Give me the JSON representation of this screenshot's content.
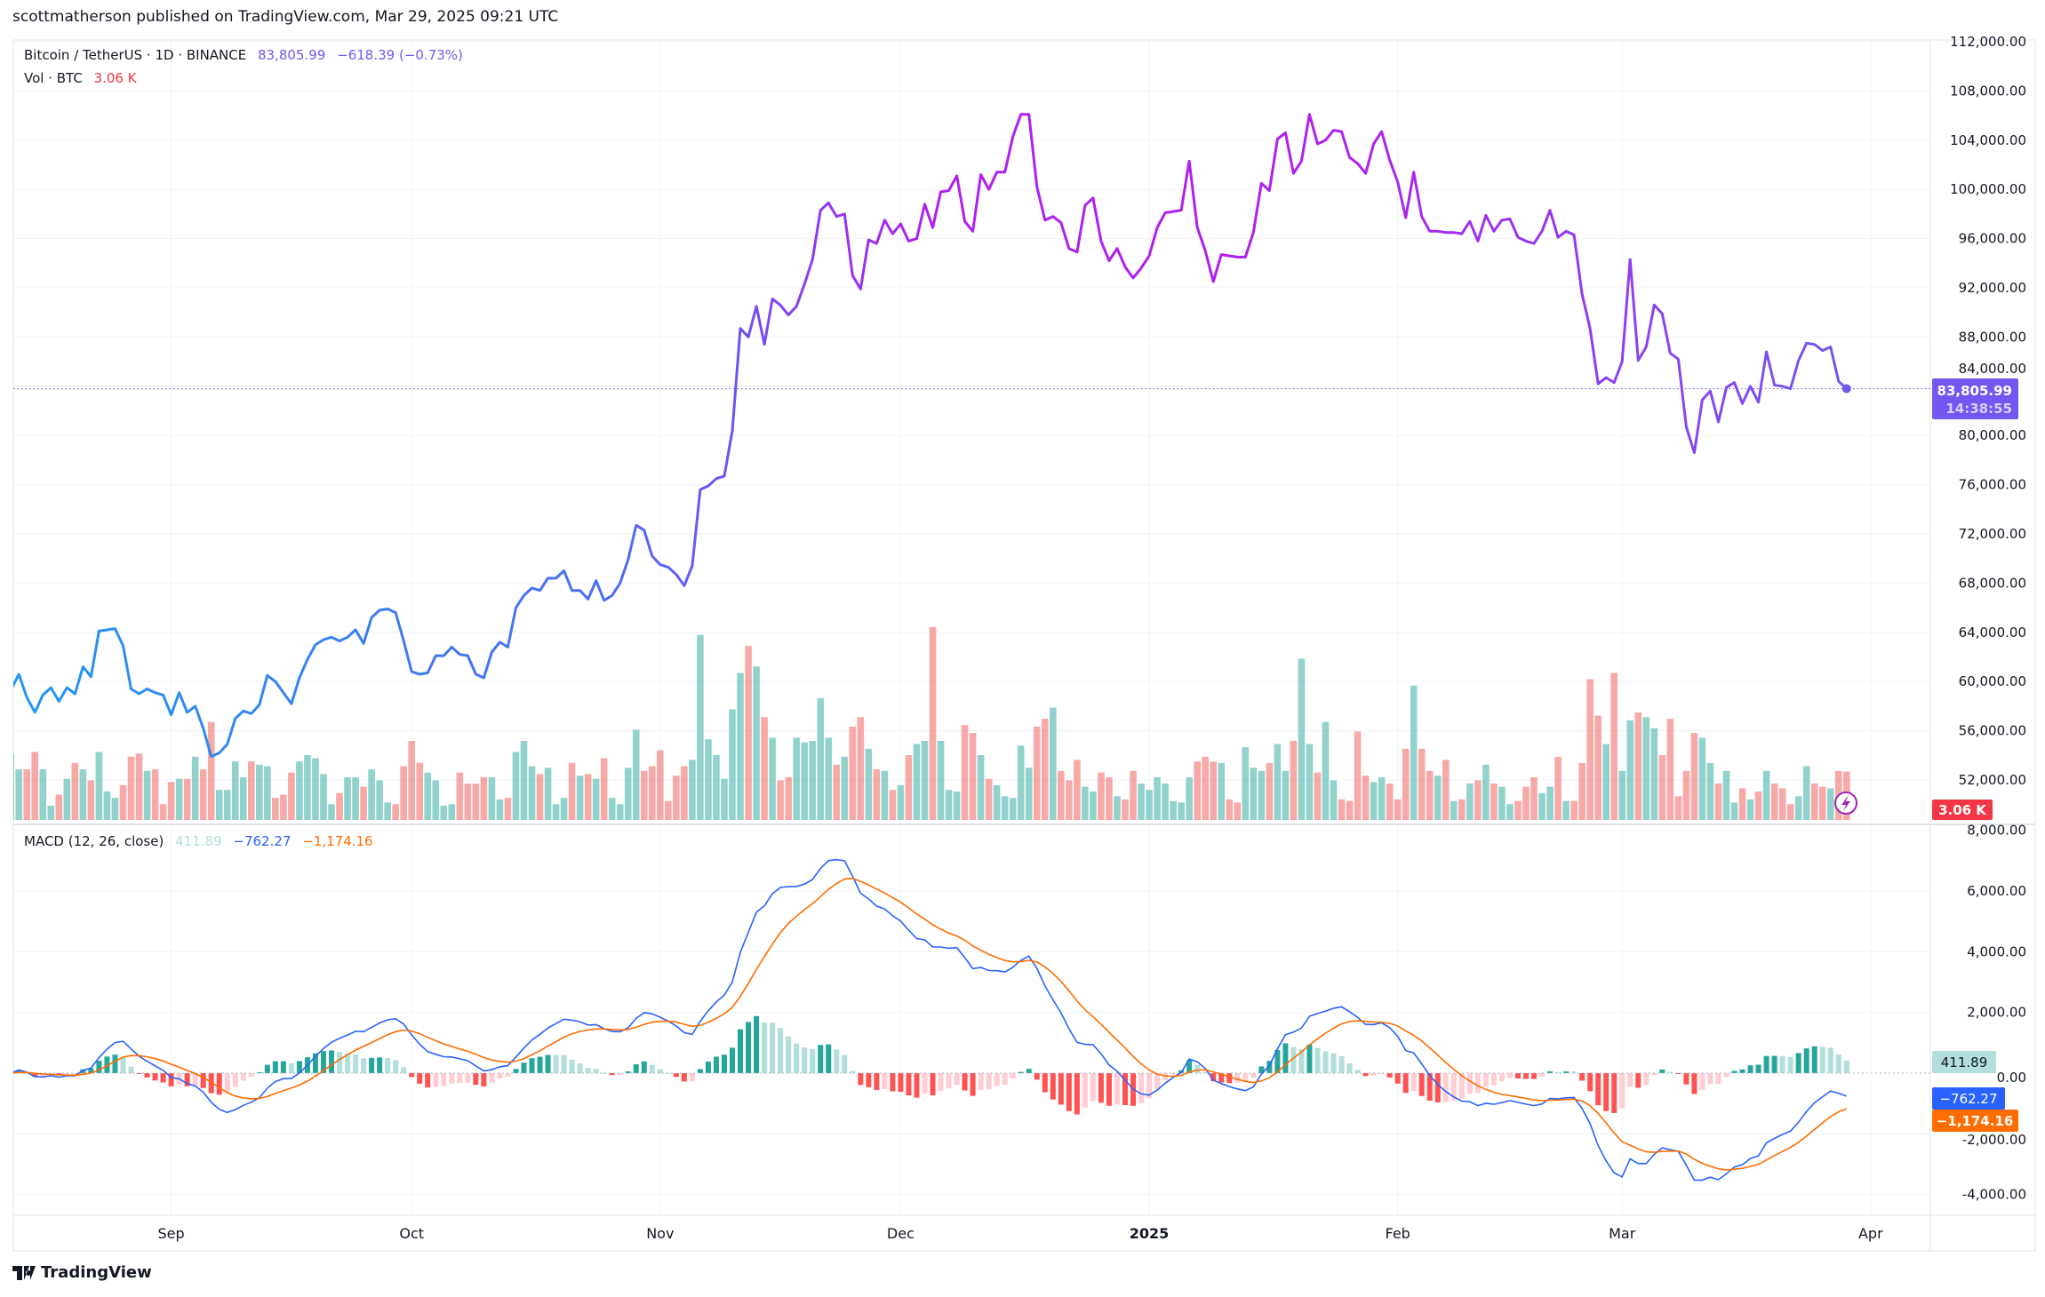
{
  "header": {
    "published": "scottmatherson published on TradingView.com, Mar 29, 2025 09:21 UTC"
  },
  "legend": {
    "symbol": "Bitcoin / TetherUS · 1D · BINANCE",
    "price": "83,805.99",
    "change": "−618.39 (−0.73%)",
    "vol_label": "Vol · BTC",
    "vol_value": "3.06 K",
    "macd_label": "MACD (12, 26, close)",
    "macd_hist": "411.89",
    "macd_line": "−762.27",
    "macd_signal": "−1,174.16"
  },
  "price_badge": {
    "price": "83,805.99",
    "countdown": "14:38:55"
  },
  "volume_badge": "3.06 K",
  "macd_badges": {
    "hist": "411.89",
    "macd": "−762.27",
    "signal": "−1,174.16"
  },
  "brand": "TradingView",
  "colors": {
    "line_start": "#2196f3",
    "line_mid": "#b01ff0",
    "line_end": "#7357f0",
    "vol_up": "#26a69a",
    "vol_down": "#ef5350",
    "macd": "#2962ff",
    "signal": "#ff6d00",
    "hist_up_strong": "#26a69a",
    "hist_up_weak": "#b2dfdb",
    "hist_down_strong": "#ff5252",
    "hist_down_weak": "#ffcdd2",
    "price_badge": "#7357f0",
    "volume_badge": "#f23645"
  },
  "chart_data": {
    "type": "line",
    "interval": "1D",
    "price_axis": {
      "range": [
        50000,
        112000
      ],
      "ticks": [
        "112,000.00",
        "108,000.00",
        "104,000.00",
        "100,000.00",
        "96,000.00",
        "92,000.00",
        "88,000.00",
        "84,000.00",
        "80,000.00",
        "76,000.00",
        "72,000.00",
        "68,000.00",
        "64,000.00",
        "60,000.00",
        "56,000.00",
        "52,000.00"
      ]
    },
    "macd_axis": {
      "range": [
        -5000,
        8500
      ],
      "ticks": [
        "8,000.00",
        "6,000.00",
        "4,000.00",
        "2,000.00",
        "0.00",
        "-2,000.00",
        "-4,000.00"
      ]
    },
    "x_ticks": [
      {
        "label": "Sep",
        "date": "2024-09-01"
      },
      {
        "label": "Oct",
        "date": "2024-10-01"
      },
      {
        "label": "Nov",
        "date": "2024-11-01"
      },
      {
        "label": "Dec",
        "date": "2024-12-01"
      },
      {
        "label": "2025",
        "date": "2025-01-01",
        "bold": true
      },
      {
        "label": "Feb",
        "date": "2025-02-01"
      },
      {
        "label": "Mar",
        "date": "2025-03-01"
      },
      {
        "label": "Apr",
        "date": "2025-04-01"
      }
    ],
    "grid": true,
    "macd_params": {
      "fast": 12,
      "slow": 26,
      "signal": 9,
      "source": "close"
    },
    "daily_close": {
      "2024-08": [
        59300,
        60600,
        58700,
        57500,
        58900,
        59500,
        58400,
        59500,
        59000,
        61200,
        60400,
        64100,
        64200,
        64300,
        62900,
        59400,
        59000,
        59400,
        59100,
        58900
      ],
      "2024-09": [
        57300,
        59100,
        57500,
        58000,
        56200,
        53900,
        54200,
        54900,
        57000,
        57600,
        57400,
        58100,
        60500,
        60000,
        59100,
        58200,
        60300,
        61800,
        63000,
        63400,
        63600,
        63300,
        63600,
        64200,
        63100,
        65200,
        65800,
        65900,
        65600,
        63300
      ],
      "2024-10": [
        60800,
        60600,
        60700,
        62100,
        62100,
        62800,
        62200,
        62100,
        60600,
        60300,
        62400,
        63200,
        62800,
        66000,
        67000,
        67600,
        67400,
        68400,
        68400,
        69000,
        67400,
        67400,
        66700,
        68200,
        66600,
        67000,
        68000,
        69900,
        72700,
        72300,
        70200
      ],
      "2024-11": [
        69500,
        69300,
        68700,
        67800,
        69400,
        75600,
        75900,
        76500,
        76700,
        80400,
        88700,
        88000,
        90500,
        87400,
        91100,
        90600,
        89800,
        90500,
        92300,
        94300,
        98300,
        98900,
        97800,
        98000,
        93000,
        91900,
        95900,
        95600,
        97500,
        96400
      ],
      "2024-12": [
        97200,
        95800,
        96000,
        98800,
        96900,
        99800,
        99900,
        101100,
        97400,
        96600,
        101200,
        100000,
        101400,
        101400,
        104300,
        106100,
        106100,
        100200,
        97500,
        97800,
        97300,
        95200,
        94900,
        98700,
        99300,
        95800,
        94200,
        95200,
        93700,
        92800,
        93600
      ],
      "2025-01": [
        94600,
        96900,
        98100,
        98200,
        98300,
        102300,
        96900,
        95000,
        92500,
        94700,
        94600,
        94500,
        94500,
        96500,
        100500,
        99900,
        104100,
        104600,
        101300,
        102300,
        106100,
        103700,
        104000,
        104800,
        104700,
        102600,
        102100,
        101300,
        103700,
        104700,
        102400
      ],
      "2025-02": [
        100600,
        97700,
        101400,
        97800,
        96600,
        96600,
        96500,
        96500,
        96400,
        97400,
        95800,
        97900,
        96600,
        97500,
        97600,
        96100,
        95800,
        95600,
        96600,
        98300,
        96100,
        96600,
        96300,
        91500,
        88700,
        84200,
        84700,
        84300
      ],
      "2025-03": [
        86000,
        94300,
        86100,
        87200,
        90600,
        89900,
        86700,
        86200,
        80700,
        78600,
        82900,
        83600,
        81100,
        83900,
        84300,
        82600,
        84000,
        82700,
        86800,
        84100,
        84000,
        83800,
        86100,
        87500,
        87400,
        86900,
        87200,
        84400,
        83805.99
      ]
    },
    "daily_volume_k_btc": {
      "2024-08": [
        4.2,
        3.2,
        3.2,
        4.3,
        3.2,
        0.9,
        1.6,
        2.6,
        3.6,
        3.2,
        2.5,
        4.3,
        1.8,
        1.4,
        2.2,
        4.0,
        4.2,
        3.1,
        3.2,
        1.0
      ],
      "2024-09": [
        2.4,
        2.6,
        2.6,
        4.0,
        3.2,
        6.2,
        1.9,
        1.9,
        3.7,
        2.7,
        3.7,
        3.5,
        3.4,
        1.4,
        1.6,
        3.0,
        3.7,
        4.1,
        3.9,
        2.9,
        1.0,
        1.7,
        2.7,
        2.7,
        2.1,
        3.2,
        2.5,
        1.1,
        1.0,
        3.4
      ],
      "2024-10": [
        5.0,
        3.6,
        3.0,
        2.5,
        0.9,
        1.0,
        3.0,
        2.3,
        2.3,
        2.7,
        2.7,
        1.3,
        1.4,
        4.3,
        5.0,
        3.4,
        2.9,
        3.3,
        1.0,
        1.4,
        3.6,
        2.8,
        2.9,
        2.6,
        3.9,
        1.4,
        1.0,
        3.3,
        5.7,
        3.1,
        3.4
      ],
      "2024-11": [
        4.4,
        1.2,
        2.8,
        3.4,
        3.8,
        11.7,
        5.1,
        4.1,
        2.6,
        7.0,
        9.3,
        11.0,
        9.7,
        6.5,
        5.2,
        2.5,
        2.7,
        5.2,
        4.9,
        5.0,
        7.7,
        5.2,
        3.5,
        4.0,
        5.9,
        6.5,
        4.5,
        3.2,
        3.1,
        1.9
      ],
      "2024-12": [
        2.2,
        4.1,
        4.8,
        5.0,
        12.2,
        5.0,
        1.9,
        1.8,
        6.0,
        5.5,
        4.1,
        2.6,
        2.2,
        1.5,
        1.4,
        4.7,
        3.3,
        5.9,
        6.4,
        7.1,
        3.1,
        2.5,
        3.8,
        2.1,
        1.8,
        3.0,
        2.7,
        1.5,
        1.3,
        3.1,
        2.3
      ],
      "2025-01": [
        1.9,
        2.7,
        2.3,
        1.2,
        1.1,
        2.7,
        3.7,
        4.0,
        3.7,
        3.6,
        1.3,
        1.1,
        4.6,
        3.3,
        3.1,
        3.6,
        4.8,
        3.1,
        5.0,
        10.2,
        4.8,
        3.0,
        6.2,
        2.5,
        1.3,
        1.2,
        5.6,
        2.8,
        2.4,
        2.7,
        2.3
      ],
      "2025-02": [
        1.3,
        4.5,
        8.5,
        4.5,
        3.1,
        2.8,
        3.8,
        1.2,
        1.3,
        2.3,
        2.5,
        3.5,
        2.3,
        2.1,
        1.0,
        1.2,
        2.1,
        2.7,
        1.7,
        2.1,
        4.0,
        1.2,
        1.2,
        3.6,
        8.9,
        6.6,
        4.8,
        9.3
      ],
      "2025-03": [
        3.1,
        6.3,
        6.8,
        6.5,
        5.8,
        4.1,
        6.4,
        1.5,
        3.1,
        5.5,
        5.2,
        3.6,
        2.3,
        3.1,
        1.1,
        2.0,
        1.3,
        1.8,
        3.1,
        2.3,
        2.0,
        1.0,
        1.5,
        3.4,
        2.3,
        2.1,
        2.0,
        3.1,
        3.06
      ]
    }
  }
}
